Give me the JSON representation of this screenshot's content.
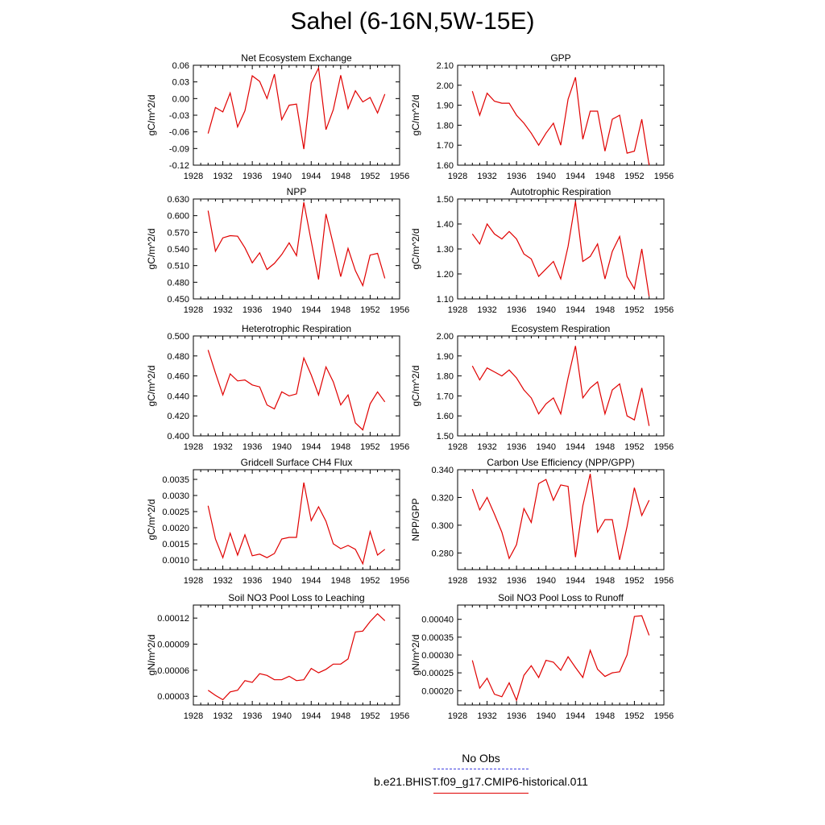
{
  "title": "Sahel (6-16N,5W-15E)",
  "legend": {
    "obs_label": "No Obs",
    "obs_color": "#4040e0",
    "model_label": "b.e21.BHIST.f09_g17.CMIP6-historical.011",
    "model_color": "#e00000"
  },
  "chart_data": [
    {
      "type": "line",
      "title": "Net Ecosystem Exchange",
      "ylabel": "gC/m^2/d",
      "xlim": [
        1928,
        1956
      ],
      "ylim": [
        -0.12,
        0.06
      ],
      "xticks": [
        1928,
        1932,
        1936,
        1940,
        1944,
        1948,
        1952,
        1956
      ],
      "yticks": [
        "-0.12",
        "-0.09",
        "-0.06",
        "-0.03",
        "0.00",
        "0.03",
        "0.06"
      ],
      "x": [
        1930,
        1931,
        1932,
        1933,
        1934,
        1935,
        1936,
        1937,
        1938,
        1939,
        1940,
        1941,
        1942,
        1943,
        1944,
        1945,
        1946,
        1947,
        1948,
        1949,
        1950,
        1951,
        1952,
        1953,
        1954
      ],
      "values": [
        -0.063,
        -0.016,
        -0.024,
        0.01,
        -0.051,
        -0.022,
        0.041,
        0.031,
        0.0,
        0.044,
        -0.038,
        -0.012,
        -0.01,
        -0.091,
        0.028,
        0.055,
        -0.056,
        -0.02,
        0.042,
        -0.018,
        0.014,
        -0.006,
        0.002,
        -0.026,
        0.008
      ]
    },
    {
      "type": "line",
      "title": "GPP",
      "ylabel": "gC/m^2/d",
      "xlim": [
        1928,
        1956
      ],
      "ylim": [
        1.6,
        2.1
      ],
      "xticks": [
        1928,
        1932,
        1936,
        1940,
        1944,
        1948,
        1952,
        1956
      ],
      "yticks": [
        "1.60",
        "1.70",
        "1.80",
        "1.90",
        "2.00",
        "2.10"
      ],
      "x": [
        1930,
        1931,
        1932,
        1933,
        1934,
        1935,
        1936,
        1937,
        1938,
        1939,
        1940,
        1941,
        1942,
        1943,
        1944,
        1945,
        1946,
        1947,
        1948,
        1949,
        1950,
        1951,
        1952,
        1953,
        1954
      ],
      "values": [
        1.97,
        1.85,
        1.96,
        1.92,
        1.91,
        1.91,
        1.85,
        1.81,
        1.76,
        1.7,
        1.76,
        1.81,
        1.7,
        1.93,
        2.04,
        1.73,
        1.87,
        1.87,
        1.67,
        1.83,
        1.85,
        1.66,
        1.67,
        1.83,
        1.6
      ]
    },
    {
      "type": "line",
      "title": "NPP",
      "ylabel": "gC/m^2/d",
      "xlim": [
        1928,
        1956
      ],
      "ylim": [
        0.45,
        0.63
      ],
      "xticks": [
        1928,
        1932,
        1936,
        1940,
        1944,
        1948,
        1952,
        1956
      ],
      "yticks": [
        "0.450",
        "0.480",
        "0.510",
        "0.540",
        "0.570",
        "0.600",
        "0.630"
      ],
      "x": [
        1930,
        1931,
        1932,
        1933,
        1934,
        1935,
        1936,
        1937,
        1938,
        1939,
        1940,
        1941,
        1942,
        1943,
        1944,
        1945,
        1946,
        1947,
        1948,
        1949,
        1950,
        1951,
        1952,
        1953,
        1954
      ],
      "values": [
        0.609,
        0.536,
        0.56,
        0.564,
        0.563,
        0.542,
        0.515,
        0.533,
        0.503,
        0.514,
        0.53,
        0.551,
        0.528,
        0.624,
        0.554,
        0.485,
        0.603,
        0.548,
        0.49,
        0.541,
        0.501,
        0.474,
        0.529,
        0.532,
        0.487
      ]
    },
    {
      "type": "line",
      "title": "Autotrophic Respiration",
      "ylabel": "gC/m^2/d",
      "xlim": [
        1928,
        1956
      ],
      "ylim": [
        1.1,
        1.5
      ],
      "xticks": [
        1928,
        1932,
        1936,
        1940,
        1944,
        1948,
        1952,
        1956
      ],
      "yticks": [
        "1.10",
        "1.20",
        "1.30",
        "1.40",
        "1.50"
      ],
      "x": [
        1930,
        1931,
        1932,
        1933,
        1934,
        1935,
        1936,
        1937,
        1938,
        1939,
        1940,
        1941,
        1942,
        1943,
        1944,
        1945,
        1946,
        1947,
        1948,
        1949,
        1950,
        1951,
        1952,
        1953,
        1954
      ],
      "values": [
        1.36,
        1.32,
        1.4,
        1.36,
        1.34,
        1.37,
        1.34,
        1.28,
        1.26,
        1.19,
        1.22,
        1.25,
        1.18,
        1.31,
        1.49,
        1.25,
        1.27,
        1.32,
        1.18,
        1.29,
        1.35,
        1.19,
        1.14,
        1.3,
        1.11
      ]
    },
    {
      "type": "line",
      "title": "Heterotrophic Respiration",
      "ylabel": "gC/m^2/d",
      "xlim": [
        1928,
        1956
      ],
      "ylim": [
        0.4,
        0.5
      ],
      "xticks": [
        1928,
        1932,
        1936,
        1940,
        1944,
        1948,
        1952,
        1956
      ],
      "yticks": [
        "0.400",
        "0.420",
        "0.440",
        "0.460",
        "0.480",
        "0.500"
      ],
      "x": [
        1930,
        1931,
        1932,
        1933,
        1934,
        1935,
        1936,
        1937,
        1938,
        1939,
        1940,
        1941,
        1942,
        1943,
        1944,
        1945,
        1946,
        1947,
        1948,
        1949,
        1950,
        1951,
        1952,
        1953,
        1954
      ],
      "values": [
        0.486,
        0.463,
        0.441,
        0.462,
        0.455,
        0.456,
        0.451,
        0.449,
        0.431,
        0.427,
        0.444,
        0.44,
        0.442,
        0.478,
        0.461,
        0.441,
        0.469,
        0.454,
        0.431,
        0.441,
        0.413,
        0.406,
        0.432,
        0.444,
        0.434
      ]
    },
    {
      "type": "line",
      "title": "Ecosystem Respiration",
      "ylabel": "gC/m^2/d",
      "xlim": [
        1928,
        1956
      ],
      "ylim": [
        1.5,
        2.0
      ],
      "xticks": [
        1928,
        1932,
        1936,
        1940,
        1944,
        1948,
        1952,
        1956
      ],
      "yticks": [
        "1.50",
        "1.60",
        "1.70",
        "1.80",
        "1.90",
        "2.00"
      ],
      "x": [
        1930,
        1931,
        1932,
        1933,
        1934,
        1935,
        1936,
        1937,
        1938,
        1939,
        1940,
        1941,
        1942,
        1943,
        1944,
        1945,
        1946,
        1947,
        1948,
        1949,
        1950,
        1951,
        1952,
        1953,
        1954
      ],
      "values": [
        1.85,
        1.78,
        1.84,
        1.82,
        1.8,
        1.83,
        1.79,
        1.73,
        1.69,
        1.61,
        1.66,
        1.69,
        1.61,
        1.79,
        1.95,
        1.69,
        1.74,
        1.77,
        1.61,
        1.73,
        1.76,
        1.6,
        1.58,
        1.74,
        1.55
      ]
    },
    {
      "type": "line",
      "title": "Gridcell Surface CH4 Flux",
      "ylabel": "gC/m^2/d",
      "xlim": [
        1928,
        1956
      ],
      "ylim": [
        0.0007,
        0.0038
      ],
      "xticks": [
        1928,
        1932,
        1936,
        1940,
        1944,
        1948,
        1952,
        1956
      ],
      "yticks": [
        "0.0010",
        "0.0015",
        "0.0020",
        "0.0025",
        "0.0030",
        "0.0035"
      ],
      "x": [
        1930,
        1931,
        1932,
        1933,
        1934,
        1935,
        1936,
        1937,
        1938,
        1939,
        1940,
        1941,
        1942,
        1943,
        1944,
        1945,
        1946,
        1947,
        1948,
        1949,
        1950,
        1951,
        1952,
        1953,
        1954
      ],
      "values": [
        0.00268,
        0.00165,
        0.00107,
        0.00183,
        0.00115,
        0.00178,
        0.00113,
        0.00118,
        0.00107,
        0.0012,
        0.00165,
        0.0017,
        0.0017,
        0.0034,
        0.00222,
        0.00265,
        0.0022,
        0.0015,
        0.00135,
        0.00145,
        0.00133,
        0.00088,
        0.00188,
        0.00115,
        0.00133
      ]
    },
    {
      "type": "line",
      "title": "Carbon Use Efficiency (NPP/GPP)",
      "ylabel": "NPP/GPP",
      "xlim": [
        1928,
        1956
      ],
      "ylim": [
        0.268,
        0.34
      ],
      "xticks": [
        1928,
        1932,
        1936,
        1940,
        1944,
        1948,
        1952,
        1956
      ],
      "yticks": [
        "0.280",
        "0.300",
        "0.320",
        "0.340"
      ],
      "x": [
        1930,
        1931,
        1932,
        1933,
        1934,
        1935,
        1936,
        1937,
        1938,
        1939,
        1940,
        1941,
        1942,
        1943,
        1944,
        1945,
        1946,
        1947,
        1948,
        1949,
        1950,
        1951,
        1952,
        1953,
        1954
      ],
      "values": [
        0.326,
        0.311,
        0.32,
        0.308,
        0.295,
        0.276,
        0.286,
        0.312,
        0.302,
        0.33,
        0.333,
        0.318,
        0.329,
        0.328,
        0.277,
        0.314,
        0.337,
        0.295,
        0.304,
        0.304,
        0.275,
        0.299,
        0.327,
        0.307,
        0.318
      ]
    },
    {
      "type": "line",
      "title": "Soil NO3 Pool Loss to Leaching",
      "ylabel": "gN/m^2/d",
      "xlim": [
        1928,
        1956
      ],
      "ylim": [
        2e-05,
        0.000135
      ],
      "xticks": [
        1928,
        1932,
        1936,
        1940,
        1944,
        1948,
        1952,
        1956
      ],
      "yticks": [
        "0.00003",
        "0.00006",
        "0.00009",
        "0.00012"
      ],
      "x": [
        1930,
        1931,
        1932,
        1933,
        1934,
        1935,
        1936,
        1937,
        1938,
        1939,
        1940,
        1941,
        1942,
        1943,
        1944,
        1945,
        1946,
        1947,
        1948,
        1949,
        1950,
        1951,
        1952,
        1953,
        1954
      ],
      "values": [
        3.7e-05,
        3.1e-05,
        2.6e-05,
        3.5e-05,
        3.7e-05,
        4.8e-05,
        4.6e-05,
        5.6e-05,
        5.4e-05,
        4.9e-05,
        4.9e-05,
        5.3e-05,
        4.8e-05,
        4.9e-05,
        6.2e-05,
        5.7e-05,
        6.1e-05,
        6.7e-05,
        6.7e-05,
        7.3e-05,
        0.000104,
        0.000105,
        0.000116,
        0.000125,
        0.000117
      ]
    },
    {
      "type": "line",
      "title": "Soil NO3 Pool Loss to Runoff",
      "ylabel": "gN/m^2/d",
      "xlim": [
        1928,
        1956
      ],
      "ylim": [
        0.00016,
        0.00044
      ],
      "xticks": [
        1928,
        1932,
        1936,
        1940,
        1944,
        1948,
        1952,
        1956
      ],
      "yticks": [
        "0.00020",
        "0.00025",
        "0.00030",
        "0.00035",
        "0.00040"
      ],
      "x": [
        1930,
        1931,
        1932,
        1933,
        1934,
        1935,
        1936,
        1937,
        1938,
        1939,
        1940,
        1941,
        1942,
        1943,
        1944,
        1945,
        1946,
        1947,
        1948,
        1949,
        1950,
        1951,
        1952,
        1953,
        1954
      ],
      "values": [
        0.000285,
        0.000207,
        0.000235,
        0.00019,
        0.000183,
        0.000222,
        0.000173,
        0.000243,
        0.00027,
        0.000237,
        0.000285,
        0.00028,
        0.000257,
        0.000295,
        0.000265,
        0.000237,
        0.000313,
        0.00026,
        0.00024,
        0.00025,
        0.000253,
        0.0003,
        0.000408,
        0.00041,
        0.000355
      ]
    }
  ]
}
